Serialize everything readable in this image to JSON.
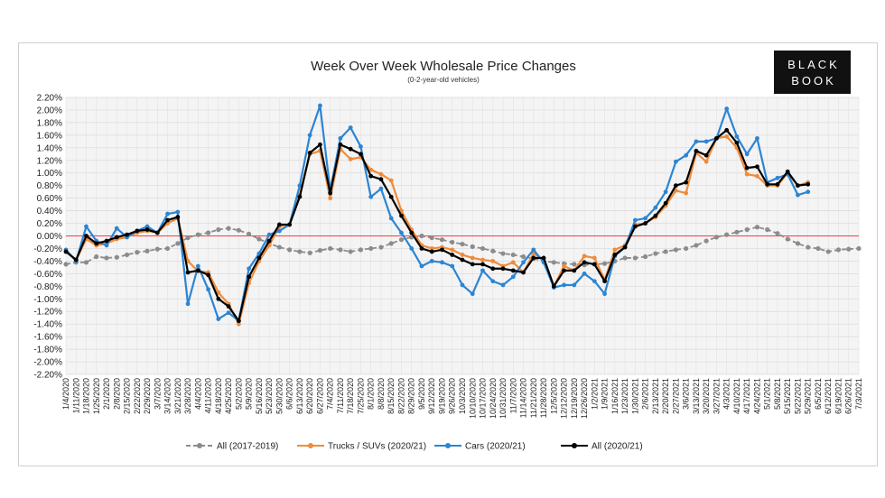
{
  "logo": {
    "line1": "BLACK",
    "line2": "BOOK"
  },
  "chart_data": {
    "type": "line",
    "title": "Week Over Week Wholesale Price Changes",
    "subtitle": "(0-2-year-old vehicles)",
    "xlabel": "",
    "ylabel": "",
    "ylim": [
      -2.2,
      2.2
    ],
    "yticks": [
      "2.20%",
      "2.00%",
      "1.80%",
      "1.60%",
      "1.40%",
      "1.20%",
      "1.00%",
      "0.80%",
      "0.60%",
      "0.40%",
      "0.20%",
      "0.00%",
      "-0.20%",
      "-0.40%",
      "-0.60%",
      "-0.80%",
      "-1.00%",
      "-1.20%",
      "-1.40%",
      "-1.60%",
      "-1.80%",
      "-2.00%",
      "-2.20%"
    ],
    "reference_line": 0,
    "x": [
      "1/4/2020",
      "1/11/2020",
      "1/18/2020",
      "1/25/2020",
      "2/1/2020",
      "2/8/2020",
      "2/15/2020",
      "2/22/2020",
      "2/29/2020",
      "3/7/2020",
      "3/14/2020",
      "3/21/2020",
      "3/28/2020",
      "4/4/2020",
      "4/11/2020",
      "4/18/2020",
      "4/25/2020",
      "5/2/2020",
      "5/9/2020",
      "5/16/2020",
      "5/23/2020",
      "5/30/2020",
      "6/6/2020",
      "6/13/2020",
      "6/20/2020",
      "6/27/2020",
      "7/4/2020",
      "7/11/2020",
      "7/18/2020",
      "7/25/2020",
      "8/1/2020",
      "8/8/2020",
      "8/15/2020",
      "8/22/2020",
      "8/29/2020",
      "9/5/2020",
      "9/12/2020",
      "9/19/2020",
      "9/26/2020",
      "10/3/2020",
      "10/10/2020",
      "10/17/2020",
      "10/24/2020",
      "10/31/2020",
      "11/7/2020",
      "11/14/2020",
      "11/21/2020",
      "11/28/2020",
      "12/5/2020",
      "12/12/2020",
      "12/19/2020",
      "12/26/2020",
      "1/2/2021",
      "1/9/2021",
      "1/16/2021",
      "1/23/2021",
      "1/30/2021",
      "2/6/2021",
      "2/13/2021",
      "2/20/2021",
      "2/27/2021",
      "3/6/2021",
      "3/13/2021",
      "3/20/2021",
      "3/27/2021",
      "4/3/2021",
      "4/10/2021",
      "4/17/2021",
      "4/24/2021",
      "5/1/2021",
      "5/8/2021",
      "5/15/2021",
      "5/22/2021",
      "5/29/2021",
      "6/5/2021",
      "6/12/2021",
      "6/19/2021",
      "6/26/2021",
      "7/3/2021"
    ],
    "xtick_labels": [
      "1/4/2020",
      "1/11/2020",
      "1/18/2020",
      "1/25/2020",
      "2/1/2020",
      "2/8/2020",
      "2/15/2020",
      "2/22/2020",
      "2/29/2020",
      "3/7/2020",
      "3/14/2020",
      "3/21/2020",
      "3/28/2020",
      "4/4/2020",
      "4/11/2020",
      "4/18/2020",
      "4/25/2020",
      "5/2/2020",
      "5/9/2020",
      "5/16/2020",
      "5/23/2020",
      "5/30/2020",
      "6/6/2020",
      "6/13/2020",
      "6/20/2020",
      "6/27/2020",
      "7/4/2020",
      "7/11/2020",
      "7/18/2020",
      "7/25/2020",
      "8/1/2020",
      "8/8/2020",
      "8/15/2020",
      "8/22/2020",
      "8/29/2020",
      "9/5/2020",
      "9/12/2020",
      "9/19/2020",
      "9/26/2020",
      "10/3/2020",
      "10/10/2020",
      "10/17/2020",
      "10/24/2020",
      "10/31/2020",
      "11/7/2020",
      "11/14/2020",
      "11/21/2020",
      "11/28/2020",
      "12/5/2020",
      "12/12/2020",
      "12/19/2020",
      "12/26/2020",
      "1/2/2021",
      "1/9/2021",
      "1/16/2021",
      "1/23/2021",
      "1/30/2021",
      "2/6/2021",
      "2/13/2021",
      "2/20/2021",
      "2/27/2021",
      "3/6/2021",
      "3/13/2021",
      "3/20/2021",
      "3/27/2021",
      "4/3/2021",
      "4/10/2021",
      "4/17/2021",
      "4/24/2021",
      "5/1/2021",
      "5/8/2021",
      "5/15/2021",
      "5/22/2021",
      "5/29/2021",
      "6/5/2021",
      "6/12/2021",
      "6/19/2021",
      "6/26/2021",
      "7/3/2021"
    ],
    "legend_position": "bottom",
    "series": [
      {
        "name": "All (2017-2019)",
        "color": "#8c8c8c",
        "dashed": true,
        "values": [
          -0.45,
          -0.42,
          -0.42,
          -0.33,
          -0.35,
          -0.34,
          -0.3,
          -0.26,
          -0.24,
          -0.21,
          -0.2,
          -0.12,
          -0.03,
          0.02,
          0.05,
          0.1,
          0.12,
          0.09,
          0.03,
          -0.05,
          -0.12,
          -0.18,
          -0.22,
          -0.25,
          -0.27,
          -0.23,
          -0.2,
          -0.22,
          -0.25,
          -0.22,
          -0.2,
          -0.18,
          -0.12,
          -0.06,
          -0.02,
          0.0,
          -0.03,
          -0.06,
          -0.1,
          -0.13,
          -0.17,
          -0.2,
          -0.24,
          -0.28,
          -0.3,
          -0.33,
          -0.36,
          -0.4,
          -0.42,
          -0.44,
          -0.45,
          -0.46,
          -0.45,
          -0.44,
          -0.4,
          -0.35,
          -0.35,
          -0.33,
          -0.28,
          -0.25,
          -0.22,
          -0.2,
          -0.15,
          -0.08,
          -0.02,
          0.02,
          0.06,
          0.1,
          0.14,
          0.1,
          0.04,
          -0.05,
          -0.12,
          -0.18,
          -0.2,
          -0.25,
          -0.22,
          -0.21,
          -0.2
        ]
      },
      {
        "name": "Trucks / SUVs (2020/21)",
        "color": "#f08b3a",
        "dashed": false,
        "values": [
          -0.25,
          -0.38,
          -0.05,
          -0.15,
          -0.12,
          -0.05,
          -0.02,
          0.05,
          0.08,
          0.05,
          0.2,
          0.28,
          -0.4,
          -0.56,
          -0.58,
          -0.9,
          -1.08,
          -1.4,
          -0.75,
          -0.4,
          -0.15,
          0.15,
          0.18,
          0.65,
          1.3,
          1.35,
          0.6,
          1.38,
          1.22,
          1.25,
          1.05,
          0.98,
          0.88,
          0.4,
          0.1,
          -0.15,
          -0.2,
          -0.18,
          -0.22,
          -0.3,
          -0.35,
          -0.38,
          -0.4,
          -0.48,
          -0.42,
          -0.58,
          -0.28,
          -0.38,
          -0.8,
          -0.48,
          -0.55,
          -0.32,
          -0.35,
          -0.7,
          -0.22,
          -0.15,
          0.18,
          0.2,
          0.3,
          0.48,
          0.72,
          0.68,
          1.32,
          1.18,
          1.55,
          1.58,
          1.4,
          0.98,
          0.95,
          0.8,
          0.8,
          1.0,
          0.8,
          0.85,
          null,
          null,
          null,
          null,
          null
        ]
      },
      {
        "name": "Cars (2020/21)",
        "color": "#2b85d3",
        "dashed": false,
        "values": [
          -0.22,
          -0.4,
          0.15,
          -0.08,
          -0.15,
          0.12,
          -0.02,
          0.08,
          0.15,
          0.05,
          0.35,
          0.38,
          -1.08,
          -0.48,
          -0.85,
          -1.32,
          -1.22,
          -1.35,
          -0.52,
          -0.28,
          0.02,
          0.08,
          0.18,
          0.8,
          1.6,
          2.07,
          0.72,
          1.55,
          1.72,
          1.42,
          0.62,
          0.75,
          0.28,
          0.05,
          -0.2,
          -0.48,
          -0.4,
          -0.42,
          -0.48,
          -0.78,
          -0.92,
          -0.55,
          -0.72,
          -0.78,
          -0.65,
          -0.42,
          -0.22,
          -0.42,
          -0.82,
          -0.78,
          -0.78,
          -0.6,
          -0.72,
          -0.92,
          -0.32,
          -0.18,
          0.25,
          0.28,
          0.45,
          0.7,
          1.18,
          1.28,
          1.5,
          1.5,
          1.55,
          2.02,
          1.58,
          1.3,
          1.55,
          0.85,
          0.92,
          0.98,
          0.65,
          0.7,
          null,
          null,
          null,
          null,
          null
        ]
      },
      {
        "name": "All (2020/21)",
        "color": "#000000",
        "dashed": false,
        "values": [
          -0.25,
          -0.38,
          0.0,
          -0.12,
          -0.08,
          -0.02,
          0.02,
          0.08,
          0.1,
          0.05,
          0.25,
          0.3,
          -0.58,
          -0.55,
          -0.62,
          -1.0,
          -1.12,
          -1.35,
          -0.65,
          -0.35,
          -0.08,
          0.18,
          0.18,
          0.62,
          1.32,
          1.45,
          0.68,
          1.45,
          1.38,
          1.3,
          0.95,
          0.9,
          0.62,
          0.32,
          0.05,
          -0.2,
          -0.25,
          -0.22,
          -0.3,
          -0.38,
          -0.45,
          -0.45,
          -0.52,
          -0.52,
          -0.55,
          -0.58,
          -0.35,
          -0.35,
          -0.8,
          -0.55,
          -0.55,
          -0.42,
          -0.45,
          -0.72,
          -0.3,
          -0.18,
          0.15,
          0.2,
          0.32,
          0.52,
          0.8,
          0.85,
          1.35,
          1.28,
          1.55,
          1.68,
          1.48,
          1.08,
          1.1,
          0.82,
          0.82,
          1.02,
          0.8,
          0.82,
          null,
          null,
          null,
          null,
          null
        ]
      }
    ]
  }
}
